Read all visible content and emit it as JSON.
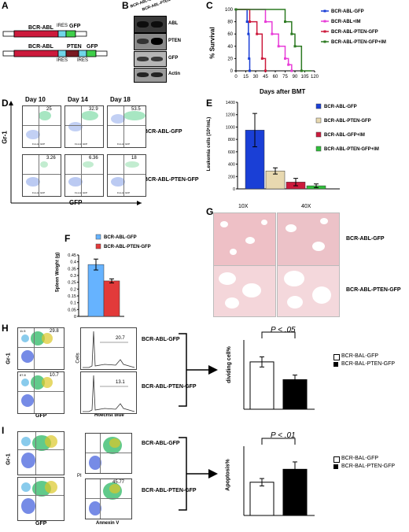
{
  "panels": {
    "A": "A",
    "B": "B",
    "C": "C",
    "D": "D",
    "E": "E",
    "F": "F",
    "G": "G",
    "H": "H",
    "I": "I"
  },
  "panel_a": {
    "construct1": {
      "gene": "BCR-ABL",
      "ires": "IRES",
      "reporter": "GFP"
    },
    "construct2": {
      "gene": "BCR-ABL",
      "ires1": "IRES",
      "middle": "PTEN",
      "ires2": "IRES",
      "reporter": "GFP"
    }
  },
  "panel_b": {
    "columns": [
      "BCR-ABL-GFP",
      "BCR-ABL-PTEN-GFP"
    ],
    "blots": [
      "ABL",
      "PTEN",
      "GFP",
      "Actin"
    ]
  },
  "colors": {
    "blue": "#1a3fd6",
    "beige": "#e8d9b0",
    "red": "#cc1a3c",
    "green": "#2fbf3a",
    "magenta": "#e83cd8",
    "darkgreen": "#2d7a22",
    "lightblue": "#66b3ff",
    "barred": "#e23a3a",
    "tissue": "#eeb6bd"
  },
  "chart_data": [
    {
      "panel": "C",
      "type": "line",
      "xlabel": "Days after BMT",
      "ylabel": "% Survival",
      "x_ticks": [
        "0",
        "15",
        "30",
        "45",
        "60",
        "75",
        "90",
        "105",
        "120"
      ],
      "y_ticks": [
        "0",
        "20",
        "40",
        "60",
        "80",
        "100"
      ],
      "xlim": [
        0,
        120
      ],
      "ylim": [
        0,
        100
      ],
      "series": [
        {
          "name": "BCR-ABL-GFP",
          "color": "#1a3fd6",
          "x": [
            0,
            17,
            17,
            19,
            19,
            20,
            20,
            21,
            21
          ],
          "y": [
            100,
            100,
            80,
            80,
            60,
            60,
            20,
            20,
            0
          ]
        },
        {
          "name": "BCR-ABL+IM",
          "color": "#e83cd8",
          "x": [
            0,
            45,
            45,
            55,
            55,
            65,
            65,
            75,
            75,
            80,
            80,
            85,
            85
          ],
          "y": [
            100,
            100,
            80,
            80,
            60,
            60,
            40,
            40,
            20,
            20,
            10,
            10,
            0
          ]
        },
        {
          "name": "BCR-ABL-PTEN-GFP",
          "color": "#cc1a3c",
          "x": [
            0,
            21,
            21,
            32,
            32,
            40,
            40,
            45,
            45
          ],
          "y": [
            100,
            100,
            80,
            80,
            60,
            60,
            20,
            20,
            0
          ]
        },
        {
          "name": "BCR-ABL-PTEN-GFP+IM",
          "color": "#2d7a22",
          "x": [
            0,
            75,
            75,
            85,
            85,
            90,
            90,
            100,
            100,
            115
          ],
          "y": [
            100,
            100,
            80,
            80,
            60,
            60,
            40,
            40,
            0,
            0
          ]
        }
      ]
    },
    {
      "panel": "E",
      "type": "bar",
      "ylabel": "Leukemia cells (10⁶/mL)",
      "y_ticks": [
        "0",
        "200",
        "400",
        "600",
        "800",
        "1000",
        "1200",
        "1400"
      ],
      "ylim": [
        0,
        1400
      ],
      "categories": [
        "BCR-ABL-GFP",
        "BCR-ABL-PTEN-GFP",
        "BCR-ABL-GFP+IM",
        "BCR-ABL-PTEN-GFP+IM"
      ],
      "values": [
        950,
        290,
        110,
        50
      ],
      "errors": [
        270,
        50,
        60,
        30
      ],
      "colors": [
        "#1a3fd6",
        "#e8d9b0",
        "#cc1a3c",
        "#2fbf3a"
      ]
    },
    {
      "panel": "F",
      "type": "bar",
      "ylabel": "Spleen Weight (g)",
      "y_ticks": [
        "0",
        "0.05",
        "0.1",
        "0.15",
        "0.2",
        "0.25",
        "0.3",
        "0.35",
        "0.4",
        "0.45"
      ],
      "ylim": [
        0,
        0.45
      ],
      "categories": [
        "BCR-ABL-GFP",
        "BCR-ABL-PTEN-GFP"
      ],
      "values": [
        0.38,
        0.26
      ],
      "errors": [
        0.04,
        0.015
      ],
      "colors": [
        "#66b3ff",
        "#e23a3a"
      ]
    },
    {
      "panel": "H",
      "type": "bar",
      "ylabel": "dividing cell%",
      "categories": [
        "BCR-BAL-GFP",
        "BCR-BAL-PTEN-GFP"
      ],
      "values": [
        20.5,
        12.8
      ],
      "errors": [
        2.2,
        2.0
      ],
      "ylim": [
        0,
        30
      ],
      "colors": [
        "#ffffff",
        "#000000"
      ],
      "annotation": "P < .05"
    },
    {
      "panel": "I",
      "type": "bar",
      "ylabel": "Apoptosis%",
      "categories": [
        "BCR-BAL-GFP",
        "BCR-BAL-PTEN-GFP"
      ],
      "values": [
        36,
        50
      ],
      "errors": [
        4,
        8
      ],
      "ylim": [
        0,
        75
      ],
      "colors": [
        "#ffffff",
        "#000000"
      ],
      "annotation": "P < .01"
    }
  ],
  "panel_d": {
    "days": [
      "Day 10",
      "Day 14",
      "Day 18"
    ],
    "rows": [
      {
        "label": "BCR-ABL-GFP",
        "values": [
          "25",
          "32.9",
          "53.5"
        ]
      },
      {
        "label": "BCR-ABL-PTEN-GFP",
        "values": [
          "3.26",
          "6.36",
          "18"
        ]
      }
    ],
    "xaxis": "GFP",
    "yaxis": "Gr-1",
    "tiny_axis": "FL1-H: GFP"
  },
  "panel_g": {
    "mags": [
      "10X",
      "40X"
    ],
    "rows": [
      "BCR-ABL-GFP",
      "BCR-ABL-PTEN-GFP"
    ]
  },
  "panel_h": {
    "yaxis": "Gr-1",
    "xaxis": "GFP",
    "hist_y": "Cells",
    "hist_x": "Hoechst blue",
    "rows": [
      {
        "label": "BCR-ABL-GFP",
        "gate": "29.8",
        "hist": "20.7",
        "small": "11.5"
      },
      {
        "label": "BCR-ABL-PTEN-GFP",
        "gate": "10.7",
        "hist": "13.1",
        "small": "87.8"
      }
    ]
  },
  "panel_i": {
    "yaxis": "Gr-1",
    "xaxis": "GFP",
    "scatter_y": "PI",
    "scatter_x": "Annexin V",
    "rows": [
      {
        "label": "BCR-ABL-GFP"
      },
      {
        "label": "BCR-ABL-PTEN-GFP",
        "value": "45.77"
      }
    ]
  }
}
